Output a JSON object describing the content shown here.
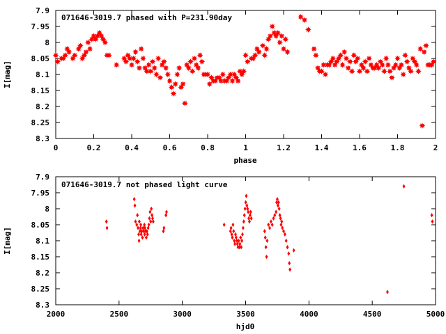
{
  "colors": {
    "points": "#ff0000",
    "axes": "#000000",
    "background": "#ffffff"
  },
  "chart_data": [
    {
      "type": "scatter",
      "title": "071646-3019.7 phased with P=231.90day",
      "xlabel": "phase",
      "ylabel": "I[mag]",
      "xlim": [
        0,
        2
      ],
      "ylim": [
        8.3,
        7.9
      ],
      "y_inverted": true,
      "grid": false,
      "marker": "filled-star",
      "x_ticks": [
        0,
        0.2,
        0.4,
        0.6,
        0.8,
        1,
        1.2,
        1.4,
        1.6,
        1.8,
        2
      ],
      "x_tick_labels": [
        "0",
        "0.2",
        "0.4",
        "0.6",
        "0.8",
        "1",
        "1.2",
        "1.4",
        "1.6",
        "1.8",
        "2"
      ],
      "y_ticks": [
        7.9,
        7.95,
        8,
        8.05,
        8.1,
        8.15,
        8.2,
        8.25,
        8.3
      ],
      "y_tick_labels": [
        "7.9",
        "7.95",
        "8",
        "8.05",
        "8.1",
        "8.15",
        "8.2",
        "8.25",
        "8.3"
      ],
      "points": [
        [
          0.0,
          8.04
        ],
        [
          0.01,
          8.06
        ],
        [
          0.03,
          8.05
        ],
        [
          0.04,
          8.05
        ],
        [
          0.05,
          8.04
        ],
        [
          0.06,
          8.02
        ],
        [
          0.07,
          8.03
        ],
        [
          0.09,
          8.05
        ],
        [
          0.1,
          8.04
        ],
        [
          0.12,
          8.02
        ],
        [
          0.13,
          8.01
        ],
        [
          0.14,
          8.05
        ],
        [
          0.15,
          8.04
        ],
        [
          0.16,
          8.03
        ],
        [
          0.17,
          8.0
        ],
        [
          0.18,
          8.02
        ],
        [
          0.19,
          7.99
        ],
        [
          0.2,
          7.98
        ],
        [
          0.21,
          7.99
        ],
        [
          0.22,
          7.98
        ],
        [
          0.23,
          7.97
        ],
        [
          0.24,
          7.98
        ],
        [
          0.25,
          7.99
        ],
        [
          0.26,
          8.0
        ],
        [
          0.27,
          8.04
        ],
        [
          0.28,
          8.04
        ],
        [
          0.32,
          8.07
        ],
        [
          0.36,
          8.05
        ],
        [
          0.37,
          8.06
        ],
        [
          0.38,
          8.04
        ],
        [
          0.39,
          8.05
        ],
        [
          0.4,
          8.07
        ],
        [
          0.41,
          8.05
        ],
        [
          0.42,
          8.03
        ],
        [
          0.43,
          8.06
        ],
        [
          0.44,
          8.08
        ],
        [
          0.45,
          8.02
        ],
        [
          0.46,
          8.05
        ],
        [
          0.47,
          8.08
        ],
        [
          0.48,
          8.09
        ],
        [
          0.49,
          8.07
        ],
        [
          0.5,
          8.09
        ],
        [
          0.51,
          8.06
        ],
        [
          0.52,
          8.08
        ],
        [
          0.53,
          8.1
        ],
        [
          0.54,
          8.05
        ],
        [
          0.55,
          8.11
        ],
        [
          0.56,
          8.07
        ],
        [
          0.57,
          8.06
        ],
        [
          0.58,
          8.08
        ],
        [
          0.59,
          8.1
        ],
        [
          0.6,
          8.12
        ],
        [
          0.61,
          8.14
        ],
        [
          0.62,
          8.16
        ],
        [
          0.63,
          8.13
        ],
        [
          0.64,
          8.1
        ],
        [
          0.65,
          8.08
        ],
        [
          0.66,
          8.14
        ],
        [
          0.67,
          8.13
        ],
        [
          0.68,
          8.19
        ],
        [
          0.69,
          8.07
        ],
        [
          0.7,
          8.08
        ],
        [
          0.71,
          8.06
        ],
        [
          0.72,
          8.09
        ],
        [
          0.73,
          8.05
        ],
        [
          0.74,
          8.07
        ],
        [
          0.75,
          8.08
        ],
        [
          0.76,
          8.04
        ],
        [
          0.77,
          8.06
        ],
        [
          0.78,
          8.1
        ],
        [
          0.79,
          8.1
        ],
        [
          0.8,
          8.1
        ],
        [
          0.81,
          8.13
        ],
        [
          0.82,
          8.11
        ],
        [
          0.83,
          8.12
        ],
        [
          0.84,
          8.12
        ],
        [
          0.85,
          8.11
        ],
        [
          0.86,
          8.11
        ],
        [
          0.87,
          8.12
        ],
        [
          0.88,
          8.1
        ],
        [
          0.89,
          8.12
        ],
        [
          0.9,
          8.12
        ],
        [
          0.91,
          8.11
        ],
        [
          0.92,
          8.1
        ],
        [
          0.93,
          8.12
        ],
        [
          0.94,
          8.1
        ],
        [
          0.95,
          8.11
        ],
        [
          0.96,
          8.12
        ],
        [
          0.97,
          8.09
        ],
        [
          0.98,
          8.1
        ],
        [
          0.99,
          8.09
        ],
        [
          1.0,
          8.04
        ],
        [
          1.01,
          8.06
        ],
        [
          1.03,
          8.05
        ],
        [
          1.04,
          8.05
        ],
        [
          1.05,
          8.04
        ],
        [
          1.06,
          8.02
        ],
        [
          1.07,
          8.03
        ],
        [
          1.09,
          8.01
        ],
        [
          1.1,
          8.04
        ],
        [
          1.11,
          8.02
        ],
        [
          1.12,
          7.99
        ],
        [
          1.13,
          7.98
        ],
        [
          1.14,
          7.95
        ],
        [
          1.15,
          7.97
        ],
        [
          1.16,
          7.98
        ],
        [
          1.17,
          7.97
        ],
        [
          1.18,
          8.0
        ],
        [
          1.19,
          7.98
        ],
        [
          1.2,
          8.02
        ],
        [
          1.21,
          7.99
        ],
        [
          1.22,
          8.03
        ],
        [
          1.29,
          7.92
        ],
        [
          1.31,
          7.93
        ],
        [
          1.33,
          7.96
        ],
        [
          1.36,
          8.02
        ],
        [
          1.37,
          8.04
        ],
        [
          1.38,
          8.08
        ],
        [
          1.39,
          8.09
        ],
        [
          1.4,
          8.09
        ],
        [
          1.41,
          8.07
        ],
        [
          1.42,
          8.1
        ],
        [
          1.43,
          8.07
        ],
        [
          1.44,
          8.07
        ],
        [
          1.45,
          8.06
        ],
        [
          1.46,
          8.05
        ],
        [
          1.47,
          8.07
        ],
        [
          1.48,
          8.06
        ],
        [
          1.49,
          8.05
        ],
        [
          1.5,
          8.04
        ],
        [
          1.51,
          8.07
        ],
        [
          1.52,
          8.03
        ],
        [
          1.53,
          8.05
        ],
        [
          1.54,
          8.08
        ],
        [
          1.55,
          8.06
        ],
        [
          1.56,
          8.09
        ],
        [
          1.57,
          8.04
        ],
        [
          1.58,
          8.06
        ],
        [
          1.59,
          8.05
        ],
        [
          1.6,
          8.09
        ],
        [
          1.61,
          8.07
        ],
        [
          1.62,
          8.08
        ],
        [
          1.63,
          8.06
        ],
        [
          1.64,
          8.09
        ],
        [
          1.65,
          8.05
        ],
        [
          1.66,
          8.07
        ],
        [
          1.67,
          8.08
        ],
        [
          1.68,
          8.08
        ],
        [
          1.69,
          8.07
        ],
        [
          1.7,
          8.08
        ],
        [
          1.71,
          8.06
        ],
        [
          1.72,
          8.07
        ],
        [
          1.73,
          8.09
        ],
        [
          1.74,
          8.05
        ],
        [
          1.75,
          8.07
        ],
        [
          1.76,
          8.09
        ],
        [
          1.77,
          8.11
        ],
        [
          1.78,
          8.08
        ],
        [
          1.79,
          8.07
        ],
        [
          1.8,
          8.05
        ],
        [
          1.81,
          8.08
        ],
        [
          1.82,
          8.07
        ],
        [
          1.83,
          8.1
        ],
        [
          1.84,
          8.04
        ],
        [
          1.85,
          8.06
        ],
        [
          1.86,
          8.08
        ],
        [
          1.87,
          8.09
        ],
        [
          1.88,
          8.05
        ],
        [
          1.89,
          8.06
        ],
        [
          1.9,
          8.07
        ],
        [
          1.91,
          8.09
        ],
        [
          1.92,
          8.02
        ],
        [
          1.93,
          8.26
        ],
        [
          1.94,
          8.03
        ],
        [
          1.95,
          8.01
        ],
        [
          1.96,
          8.07
        ],
        [
          1.97,
          8.07
        ],
        [
          1.98,
          8.07
        ],
        [
          1.99,
          8.06
        ]
      ]
    },
    {
      "type": "scatter",
      "title": "071646-3019.7 not phased light curve",
      "xlabel": "hjd0",
      "ylabel": "I[mag]",
      "xlim": [
        2000,
        5000
      ],
      "ylim": [
        8.3,
        7.9
      ],
      "y_inverted": true,
      "grid": false,
      "marker": "filled-diamond",
      "x_ticks": [
        2000,
        2500,
        3000,
        3500,
        4000,
        4500,
        5000
      ],
      "x_tick_labels": [
        "2000",
        "2500",
        "3000",
        "3500",
        "4000",
        "4500",
        "5000"
      ],
      "y_ticks": [
        7.9,
        7.95,
        8,
        8.05,
        8.1,
        8.15,
        8.2,
        8.25,
        8.3
      ],
      "y_tick_labels": [
        "7.9",
        "7.95",
        "8",
        "8.05",
        "8.1",
        "8.15",
        "8.2",
        "8.25",
        "8.3"
      ],
      "points": [
        [
          2400,
          8.04
        ],
        [
          2405,
          8.06
        ],
        [
          2620,
          7.97
        ],
        [
          2625,
          7.99
        ],
        [
          2630,
          8.04
        ],
        [
          2640,
          8.05
        ],
        [
          2645,
          8.02
        ],
        [
          2650,
          8.06
        ],
        [
          2655,
          8.08
        ],
        [
          2658,
          8.1
        ],
        [
          2660,
          8.04
        ],
        [
          2665,
          8.07
        ],
        [
          2670,
          8.06
        ],
        [
          2672,
          8.05
        ],
        [
          2675,
          8.08
        ],
        [
          2680,
          8.07
        ],
        [
          2685,
          8.09
        ],
        [
          2690,
          8.06
        ],
        [
          2695,
          8.07
        ],
        [
          2700,
          8.05
        ],
        [
          2702,
          8.08
        ],
        [
          2705,
          8.06
        ],
        [
          2710,
          8.07
        ],
        [
          2715,
          8.09
        ],
        [
          2720,
          8.07
        ],
        [
          2725,
          8.08
        ],
        [
          2730,
          8.06
        ],
        [
          2735,
          8.05
        ],
        [
          2740,
          8.03
        ],
        [
          2745,
          8.01
        ],
        [
          2750,
          8.04
        ],
        [
          2755,
          8.0
        ],
        [
          2760,
          8.02
        ],
        [
          2765,
          8.03
        ],
        [
          2770,
          8.04
        ],
        [
          2850,
          8.07
        ],
        [
          2855,
          8.06
        ],
        [
          2870,
          8.02
        ],
        [
          2875,
          8.01
        ],
        [
          3330,
          8.05
        ],
        [
          3380,
          8.07
        ],
        [
          3385,
          8.06
        ],
        [
          3390,
          8.08
        ],
        [
          3395,
          8.09
        ],
        [
          3400,
          8.05
        ],
        [
          3405,
          8.07
        ],
        [
          3410,
          8.1
        ],
        [
          3415,
          8.11
        ],
        [
          3420,
          8.08
        ],
        [
          3425,
          8.09
        ],
        [
          3430,
          8.1
        ],
        [
          3435,
          8.11
        ],
        [
          3440,
          8.12
        ],
        [
          3445,
          8.1
        ],
        [
          3450,
          8.12
        ],
        [
          3455,
          8.11
        ],
        [
          3460,
          8.09
        ],
        [
          3465,
          8.12
        ],
        [
          3470,
          8.1
        ],
        [
          3475,
          8.08
        ],
        [
          3480,
          8.06
        ],
        [
          3485,
          8.04
        ],
        [
          3490,
          8.02
        ],
        [
          3495,
          8.0
        ],
        [
          3500,
          7.98
        ],
        [
          3505,
          7.96
        ],
        [
          3510,
          7.99
        ],
        [
          3515,
          8.0
        ],
        [
          3520,
          8.01
        ],
        [
          3525,
          8.03
        ],
        [
          3530,
          8.04
        ],
        [
          3535,
          8.02
        ],
        [
          3540,
          8.01
        ],
        [
          3545,
          8.03
        ],
        [
          3650,
          8.07
        ],
        [
          3655,
          8.09
        ],
        [
          3660,
          8.12
        ],
        [
          3665,
          8.15
        ],
        [
          3670,
          8.1
        ],
        [
          3680,
          8.05
        ],
        [
          3690,
          8.06
        ],
        [
          3700,
          8.04
        ],
        [
          3710,
          8.05
        ],
        [
          3720,
          8.03
        ],
        [
          3730,
          8.02
        ],
        [
          3740,
          8.01
        ],
        [
          3745,
          7.98
        ],
        [
          3750,
          7.97
        ],
        [
          3755,
          7.99
        ],
        [
          3760,
          7.98
        ],
        [
          3765,
          8.0
        ],
        [
          3770,
          8.02
        ],
        [
          3775,
          8.03
        ],
        [
          3780,
          8.05
        ],
        [
          3785,
          8.04
        ],
        [
          3790,
          8.06
        ],
        [
          3800,
          8.07
        ],
        [
          3810,
          8.08
        ],
        [
          3820,
          8.1
        ],
        [
          3830,
          8.12
        ],
        [
          3840,
          8.14
        ],
        [
          3845,
          8.17
        ],
        [
          3850,
          8.19
        ],
        [
          3880,
          8.13
        ],
        [
          4620,
          8.26
        ],
        [
          4750,
          7.93
        ],
        [
          4970,
          8.02
        ],
        [
          4975,
          8.04
        ]
      ]
    }
  ]
}
